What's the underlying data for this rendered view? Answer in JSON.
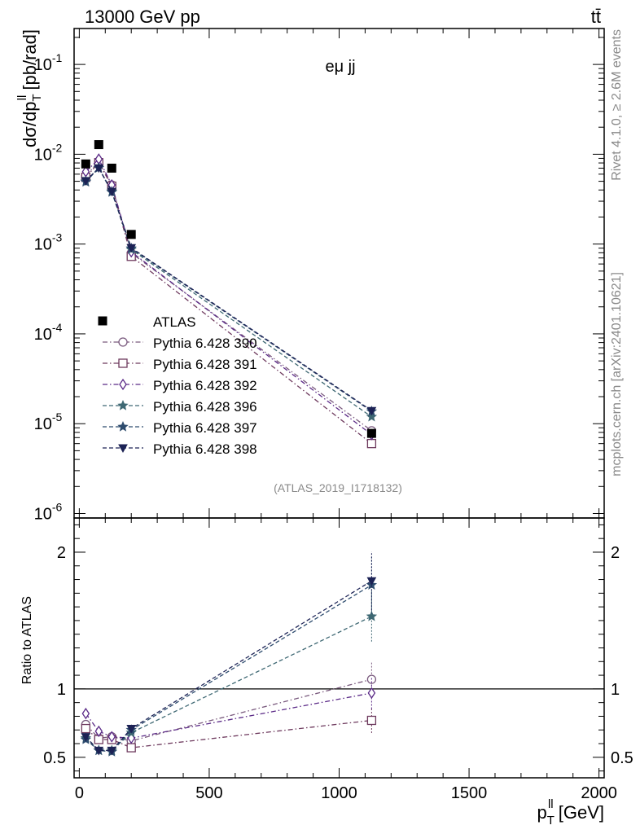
{
  "header": {
    "energy": "13000 GeV pp",
    "process": "tt̄",
    "channel": "eμ jj",
    "analysis": "(ATLAS_2019_I1718132)",
    "side_top": "Rivet 4.1.0, ≥ 2.6M events",
    "side_bottom": "mcplots.cern.ch [arXiv:2401.10621]"
  },
  "chart_data": {
    "type": "line",
    "title": "",
    "xlabel": "p_T^ll [GeV]",
    "ylabel_main": "dσ/dp_T^ll [pb/rad]",
    "ylabel_ratio": "Ratio to ATLAS",
    "xlim": [
      -20,
      2020
    ],
    "ylim_main_log10": [
      -6.05,
      -0.6
    ],
    "ylim_ratio": [
      0.35,
      2.25
    ],
    "x_ticks": [
      "0",
      "500",
      "1000",
      "1500",
      "2000"
    ],
    "y_ticks_main": [
      "10^-6",
      "10^-5",
      "10^-4",
      "10^-3",
      "10^-2",
      "10^-1"
    ],
    "y_ticks_ratio": [
      "0.5",
      "1",
      "2"
    ],
    "x": [
      25,
      75,
      125,
      200,
      1125
    ],
    "data": {
      "name": "ATLAS",
      "values": [
        0.0078,
        0.0128,
        0.007,
        0.00128,
        7.8e-06
      ]
    },
    "series": [
      {
        "name": "Pythia 6.428 390",
        "color": "#7a5a7e",
        "marker": "circle",
        "dash": "dashdot",
        "ratio": [
          0.74,
          0.64,
          0.65,
          0.62,
          1.07
        ]
      },
      {
        "name": "Pythia 6.428 391",
        "color": "#6e3a5e",
        "marker": "square",
        "dash": "dashdot",
        "ratio": [
          0.71,
          0.63,
          0.63,
          0.57,
          0.77
        ]
      },
      {
        "name": "Pythia 6.428 392",
        "color": "#5b2a87",
        "marker": "diamond",
        "dash": "dashdot",
        "ratio": [
          0.82,
          0.69,
          0.65,
          0.64,
          0.97
        ]
      },
      {
        "name": "Pythia 6.428 396",
        "color": "#3e6873",
        "marker": "star",
        "dash": "dashed",
        "ratio": [
          0.64,
          0.55,
          0.55,
          0.68,
          1.53
        ]
      },
      {
        "name": "Pythia 6.428 397",
        "color": "#2e4c6e",
        "marker": "star",
        "dash": "dashed",
        "ratio": [
          0.63,
          0.55,
          0.54,
          0.7,
          1.76
        ]
      },
      {
        "name": "Pythia 6.428 398",
        "color": "#1c2255",
        "marker": "triangle-down",
        "dash": "dashed",
        "ratio": [
          0.65,
          0.55,
          0.55,
          0.71,
          1.79
        ]
      }
    ]
  }
}
